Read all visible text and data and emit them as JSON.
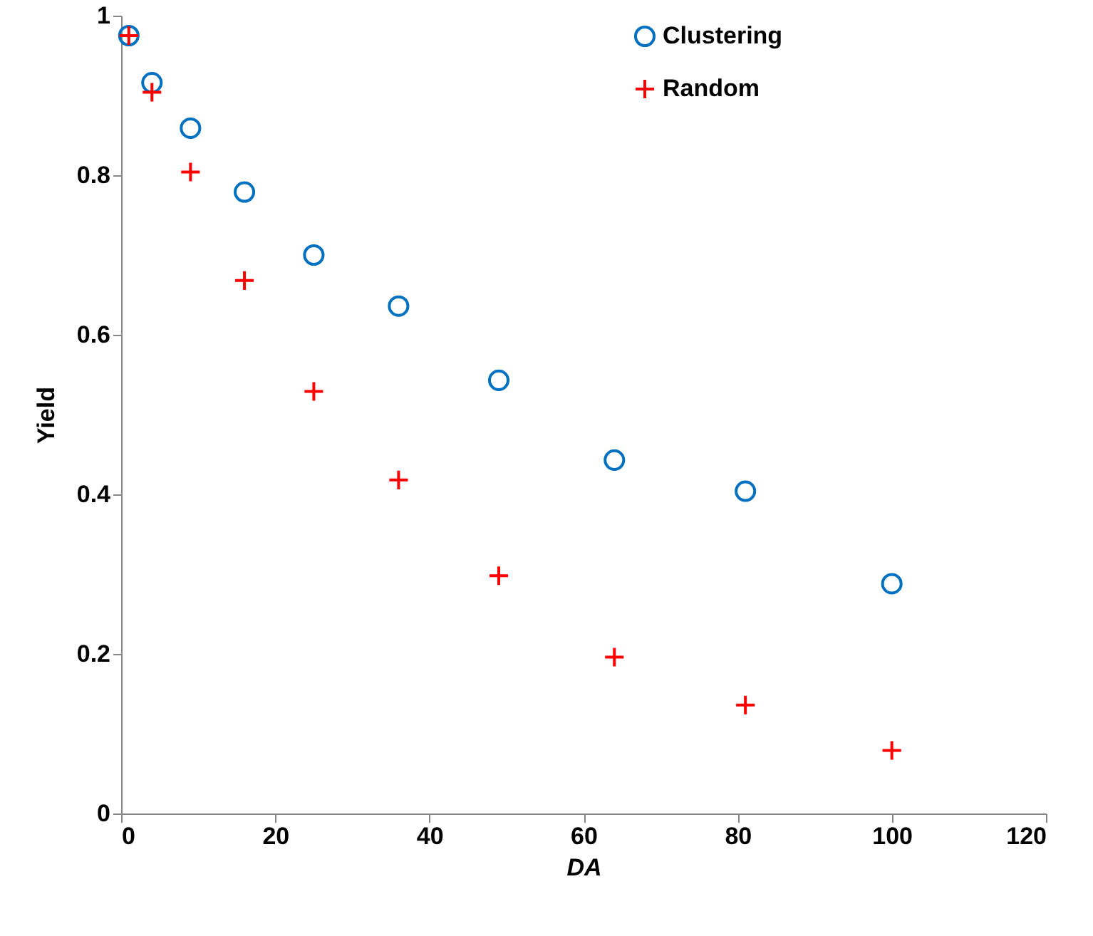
{
  "chart_data": {
    "type": "scatter",
    "xlabel": "DA",
    "ylabel": "Yield",
    "x": [
      1,
      4,
      9,
      16,
      25,
      36,
      49,
      64,
      81,
      100
    ],
    "series": [
      {
        "name": "Clustering",
        "color": "#0070c0",
        "marker": "circle",
        "values": [
          0.975,
          0.916,
          0.859,
          0.779,
          0.7,
          0.636,
          0.543,
          0.443,
          0.404,
          0.288
        ]
      },
      {
        "name": "Random",
        "color": "#ff0000",
        "marker": "cross",
        "values": [
          0.975,
          0.904,
          0.804,
          0.668,
          0.529,
          0.418,
          0.298,
          0.196,
          0.136,
          0.079
        ]
      }
    ],
    "xlim": [
      0,
      120
    ],
    "xticks": [
      0,
      20,
      40,
      60,
      80,
      100,
      120
    ],
    "ylim": [
      0,
      1
    ],
    "yticks": [
      0,
      0.2,
      0.4,
      0.6,
      0.8,
      1
    ],
    "grid": false,
    "legend": "top right"
  }
}
